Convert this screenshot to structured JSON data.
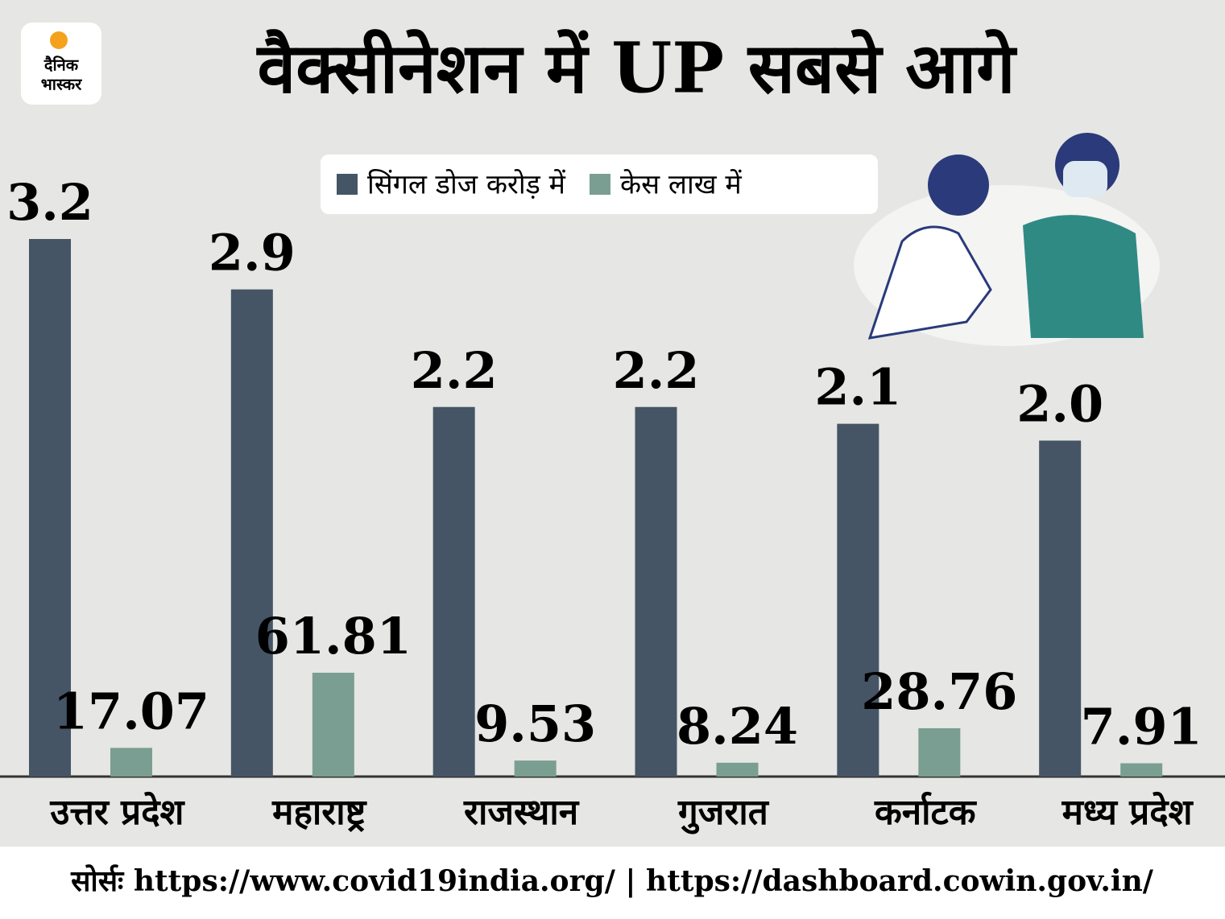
{
  "logo": {
    "line1": "दैनिक",
    "line2": "भास्कर"
  },
  "chart_data": {
    "type": "bar",
    "title": "वैक्सीनेशन में UP सबसे आगे",
    "categories": [
      "उत्तर प्रदेश",
      "महाराष्ट्र",
      "राजस्थान",
      "गुजरात",
      "कर्नाटक",
      "मध्य प्रदेश"
    ],
    "series": [
      {
        "name": "सिंगल डोज करोड़ में",
        "color": "#455565",
        "values": [
          3.2,
          2.9,
          2.2,
          2.2,
          2.1,
          2.0
        ],
        "value_labels": [
          "3.2",
          "2.9",
          "2.2",
          "2.2",
          "2.1",
          "2.0"
        ]
      },
      {
        "name": "केस लाख में",
        "color": "#7a9e92",
        "axis": "y2",
        "values": [
          17.07,
          61.81,
          9.53,
          8.24,
          28.76,
          7.91
        ]
      }
    ],
    "ylim": [
      0,
      4
    ],
    "y2lim": [
      0,
      400
    ],
    "legend": "top"
  },
  "source": "सोर्सः https://www.covid19india.org/  |  https://dashboard.cowin.gov.in/"
}
